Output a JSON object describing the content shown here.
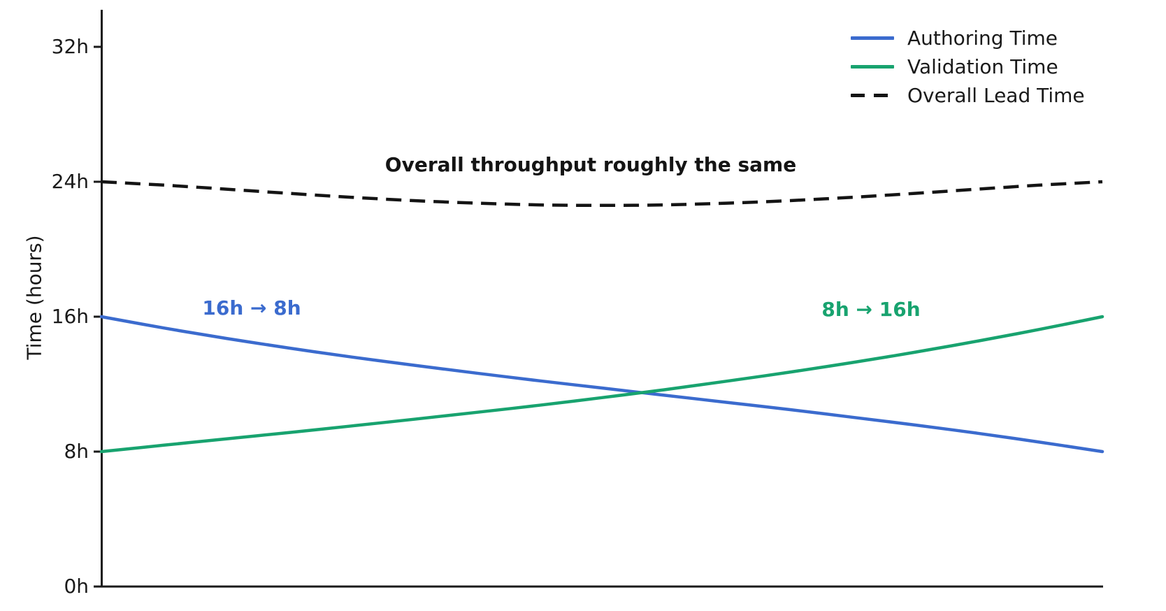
{
  "chart_data": {
    "type": "line",
    "ylabel": "Time (hours)",
    "xlabel": "",
    "ylim": [
      0,
      34.2
    ],
    "xlim": [
      0,
      1
    ],
    "grid": false,
    "legend_position": "upper right",
    "axis_color": "#1a1a1a",
    "yticks": [
      {
        "value": 0,
        "label": "0h"
      },
      {
        "value": 8,
        "label": "8h"
      },
      {
        "value": 16,
        "label": "16h"
      },
      {
        "value": 24,
        "label": "24h"
      },
      {
        "value": 32,
        "label": "32h"
      }
    ],
    "x": [
      0,
      0.0625,
      0.125,
      0.1875,
      0.25,
      0.3125,
      0.375,
      0.4375,
      0.5,
      0.5625,
      0.625,
      0.6875,
      0.75,
      0.8125,
      0.875,
      0.9375,
      1
    ],
    "series": [
      {
        "name": "Authoring Time",
        "color": "#3b6bce",
        "style": "solid",
        "start_value_h": 16,
        "end_value_h": 8,
        "values": [
          16.0,
          15.33,
          14.71,
          14.14,
          13.61,
          13.12,
          12.65,
          12.2,
          11.77,
          11.34,
          10.92,
          10.49,
          10.04,
          9.58,
          9.09,
          8.56,
          8.0
        ]
      },
      {
        "name": "Validation Time",
        "color": "#18a36f",
        "style": "solid",
        "start_value_h": 8,
        "end_value_h": 16,
        "values": [
          8.0,
          8.38,
          8.76,
          9.13,
          9.52,
          9.92,
          10.33,
          10.75,
          11.2,
          11.67,
          12.18,
          12.71,
          13.28,
          13.89,
          14.55,
          15.25,
          16.0
        ]
      },
      {
        "name": "Overall Lead Time",
        "color": "#141414",
        "style": "dashed",
        "start_value_h": 24,
        "end_value_h": 24,
        "values": [
          24.0,
          23.8,
          23.56,
          23.31,
          23.08,
          22.88,
          22.73,
          22.63,
          22.6,
          22.63,
          22.73,
          22.88,
          23.08,
          23.31,
          23.56,
          23.8,
          24.0
        ]
      }
    ],
    "annotations": [
      {
        "text": "Overall throughput roughly the same",
        "color": "#141414"
      },
      {
        "text": "16h → 8h",
        "color": "#3b6bce"
      },
      {
        "text": "8h → 16h",
        "color": "#18a36f"
      }
    ]
  }
}
